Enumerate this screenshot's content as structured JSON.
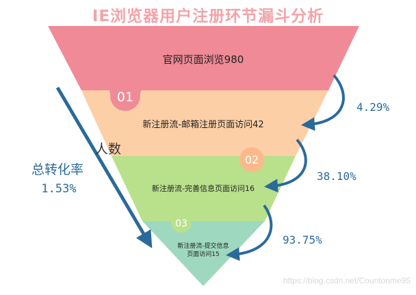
{
  "title": "IE浏览器用户注册环节漏斗分析",
  "colors": {
    "title": "#f4a3a8",
    "stage1": "#f08a96",
    "stage2": "#fdcfa6",
    "stage3": "#b9e08b",
    "stage4": "#9ed8bf",
    "arrow": "#2a6a9a",
    "stage_text": "#222222",
    "badge1": "#f08a96",
    "badge2": "#fbb98b",
    "badge3": "#b9e08b"
  },
  "y_axis_label": "人数",
  "total_conversion": {
    "label": "总转化率",
    "value": "1.53%"
  },
  "stages": [
    {
      "badge": "",
      "label": "官网页面浏览980"
    },
    {
      "badge": "01",
      "label": "新注册流-邮箱注册页面访问42"
    },
    {
      "badge": "02",
      "label": "新注册流-完善信息页面访问16"
    },
    {
      "badge": "03",
      "label_line1": "新注册流-提交信息",
      "label_line2": "页面访问15"
    }
  ],
  "step_rates": [
    "4.29%",
    "38.10%",
    "93.75%"
  ],
  "watermark": "https://blog.csdn.net/Countonme95",
  "icons": {
    "curved_arrow": "curved-arrow-icon",
    "total_arrow": "diagonal-arrow-icon"
  }
}
